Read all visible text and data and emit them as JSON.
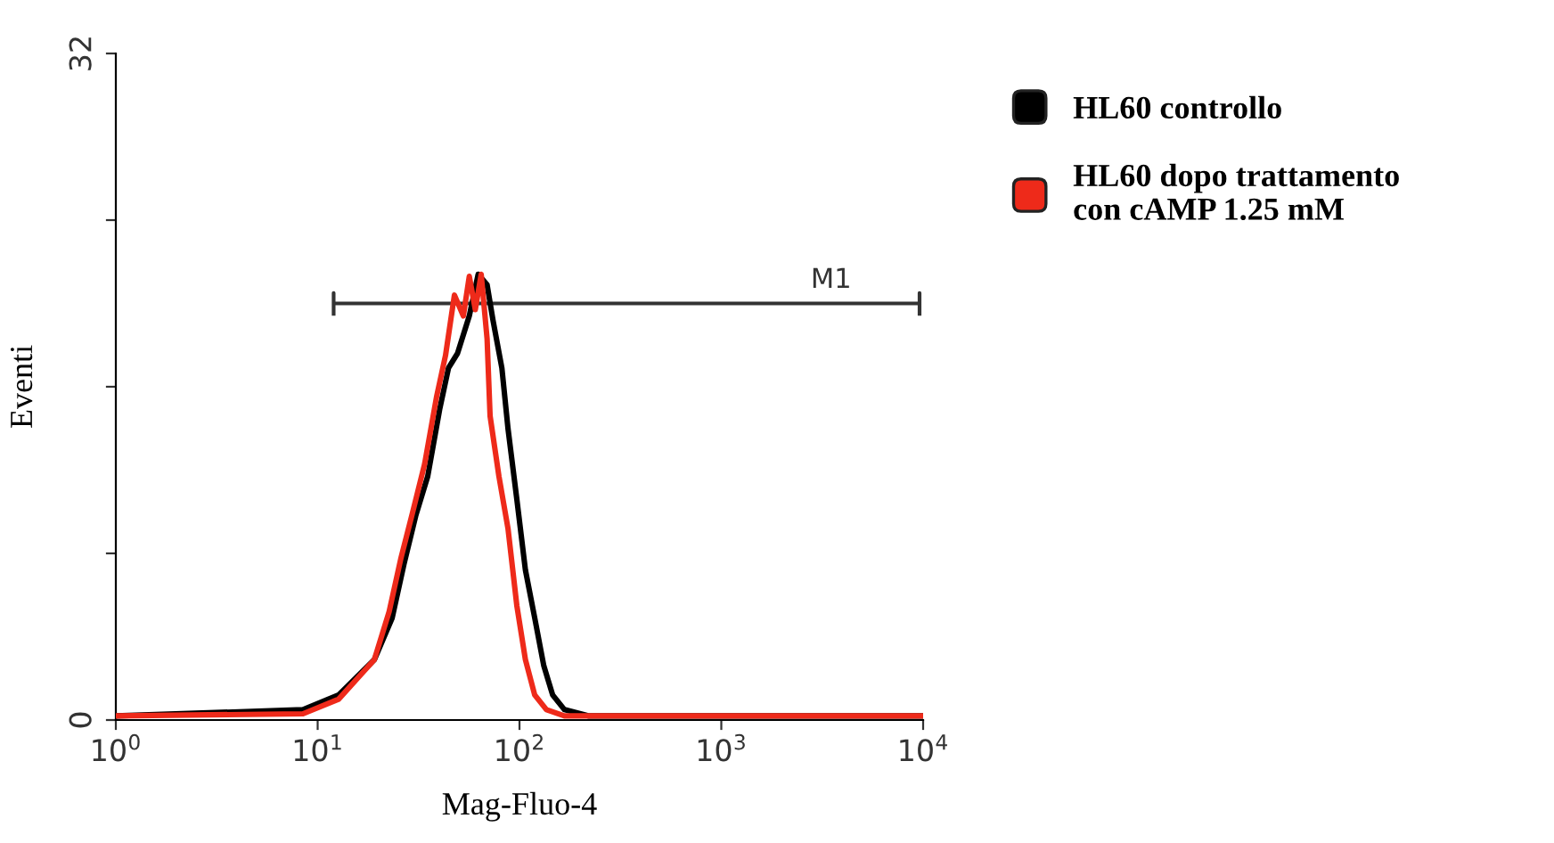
{
  "chart_data": {
    "type": "line",
    "xlabel": "Mag-Fluo-4",
    "ylabel": "Eventi",
    "log": "x",
    "xlim": [
      1,
      10000
    ],
    "xticks": [
      {
        "value": 1,
        "label": "10$^{0}$"
      },
      {
        "value": 10,
        "label": "10$^{1}$"
      },
      {
        "value": 100,
        "label": "10$^{2}$"
      },
      {
        "value": 1000,
        "label": "10$^{3}$"
      },
      {
        "value": 10000,
        "label": "10$^{4}$"
      }
    ],
    "ylim": [
      0,
      32
    ],
    "yticks": [
      0,
      {
        "value": 8,
        "label": null
      },
      {
        "value": 16,
        "label": null
      },
      {
        "value": 24,
        "label": null
      },
      32
    ],
    "grid": false,
    "legend": "right",
    "line_style": "solid",
    "marker": "none",
    "series": [
      {
        "name": "HL60 controllo",
        "color": "#000000",
        "x": [
          1,
          8.46,
          12.7,
          19.1,
          23.4,
          26.8,
          30.6,
          35.1,
          40.2,
          44.5,
          49.3,
          56.4,
          62.4,
          69.1,
          73.9,
          81.8,
          87.7,
          97.0,
          107,
          119,
          132,
          146,
          167,
          219,
          10000
        ],
        "values": [
          0.2,
          0.5,
          1.2,
          2.9,
          4.9,
          7.5,
          9.8,
          11.7,
          14.9,
          16.9,
          17.6,
          19.4,
          21.4,
          20.9,
          19.2,
          16.9,
          14.0,
          10.6,
          7.2,
          4.9,
          2.6,
          1.2,
          0.5,
          0.2,
          0.2
        ]
      },
      {
        "name": "HL60 dopo trattamento con cAMP 1.25 mM",
        "color": "#ee2a1a",
        "x": [
          1,
          8.46,
          12.7,
          19.1,
          22.6,
          25.9,
          29.6,
          33.9,
          38.8,
          43.0,
          47.6,
          52.7,
          56.4,
          60.4,
          64.6,
          69.1,
          71.5,
          79.1,
          87.7,
          97.0,
          107,
          119,
          136,
          167,
          10000
        ],
        "values": [
          0.2,
          0.3,
          1.0,
          2.9,
          5.2,
          7.8,
          10.0,
          12.3,
          15.5,
          17.5,
          20.4,
          19.4,
          21.3,
          19.7,
          21.4,
          18.3,
          14.6,
          11.7,
          9.2,
          5.5,
          2.9,
          1.2,
          0.5,
          0.2,
          0.2
        ]
      },
      {
        "type": "line",
        "color": "#333333",
        "x": [
          12,
          12,
          12,
          9600,
          9600,
          9600
        ],
        "values": [
          19.5,
          20.5,
          20,
          20,
          20.5,
          19.5
        ]
      }
    ],
    "annotations": [
      {
        "text": "M1",
        "x": 3500,
        "y": 20
      }
    ]
  }
}
